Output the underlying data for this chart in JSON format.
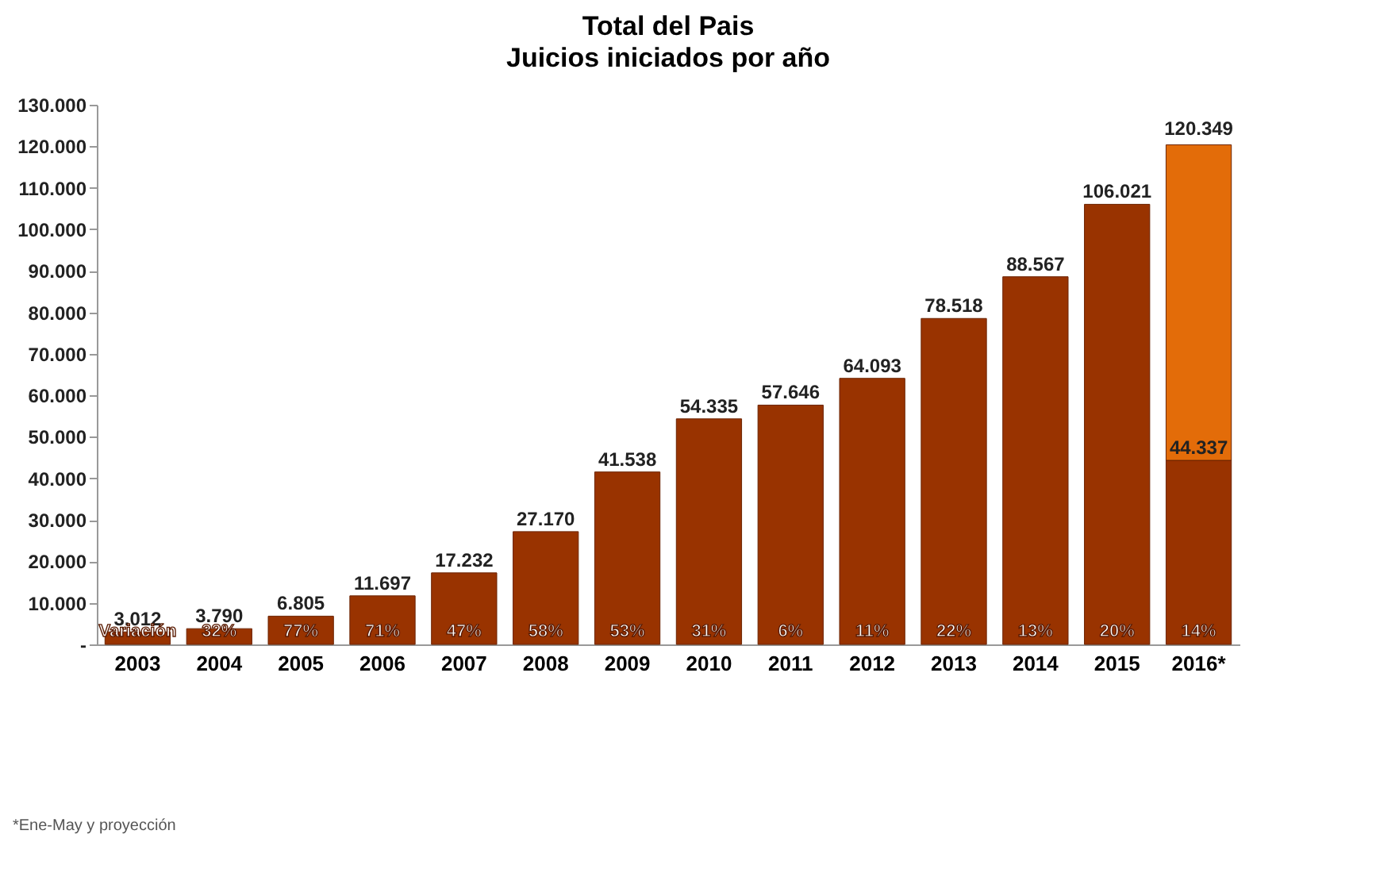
{
  "chart_data": {
    "type": "bar",
    "stacked": true,
    "title": "Total del Pais",
    "subtitle": "Juicios iniciados por año",
    "categories": [
      "2003",
      "2004",
      "2005",
      "2006",
      "2007",
      "2008",
      "2009",
      "2010",
      "2011",
      "2012",
      "2013",
      "2014",
      "2015",
      "2016*"
    ],
    "series": [
      {
        "color": "#993300",
        "values": [
          3012,
          3790,
          6805,
          11697,
          17232,
          27170,
          41538,
          54335,
          57646,
          64093,
          78518,
          88567,
          106021,
          44337
        ],
        "value_labels": [
          "3.012",
          "3.790",
          "6.805",
          "11.697",
          "17.232",
          "27.170",
          "41.538",
          "54.335",
          "57.646",
          "64.093",
          "78.518",
          "88.567",
          "106.021",
          "44.337"
        ]
      },
      {
        "color": "#e36c09",
        "values": [
          null,
          null,
          null,
          null,
          null,
          null,
          null,
          null,
          null,
          null,
          null,
          null,
          null,
          76012
        ]
      }
    ],
    "totals": [
      null,
      null,
      null,
      null,
      null,
      null,
      null,
      null,
      null,
      null,
      null,
      null,
      null,
      "120.349"
    ],
    "ylim": [
      0,
      130000
    ],
    "yticks": [
      {
        "value": 0,
        "label": "-"
      },
      {
        "value": 10000,
        "label": "10.000"
      },
      {
        "value": 20000,
        "label": "20.000"
      },
      {
        "value": 30000,
        "label": "30.000"
      },
      {
        "value": 40000,
        "label": "40.000"
      },
      {
        "value": 50000,
        "label": "50.000"
      },
      {
        "value": 60000,
        "label": "60.000"
      },
      {
        "value": 70000,
        "label": "70.000"
      },
      {
        "value": 80000,
        "label": "80.000"
      },
      {
        "value": 90000,
        "label": "90.000"
      },
      {
        "value": 100000,
        "label": "100.000"
      },
      {
        "value": 110000,
        "label": "110.000"
      },
      {
        "value": 120000,
        "label": "120.000"
      },
      {
        "value": 130000,
        "label": "130.000"
      }
    ],
    "annotations": [
      "Variación",
      "32%",
      "77%",
      "71%",
      "47%",
      "58%",
      "53%",
      "31%",
      "6%",
      "11%",
      "22%",
      "13%",
      "20%",
      "14%",
      "*Ene-May y proyección"
    ]
  }
}
